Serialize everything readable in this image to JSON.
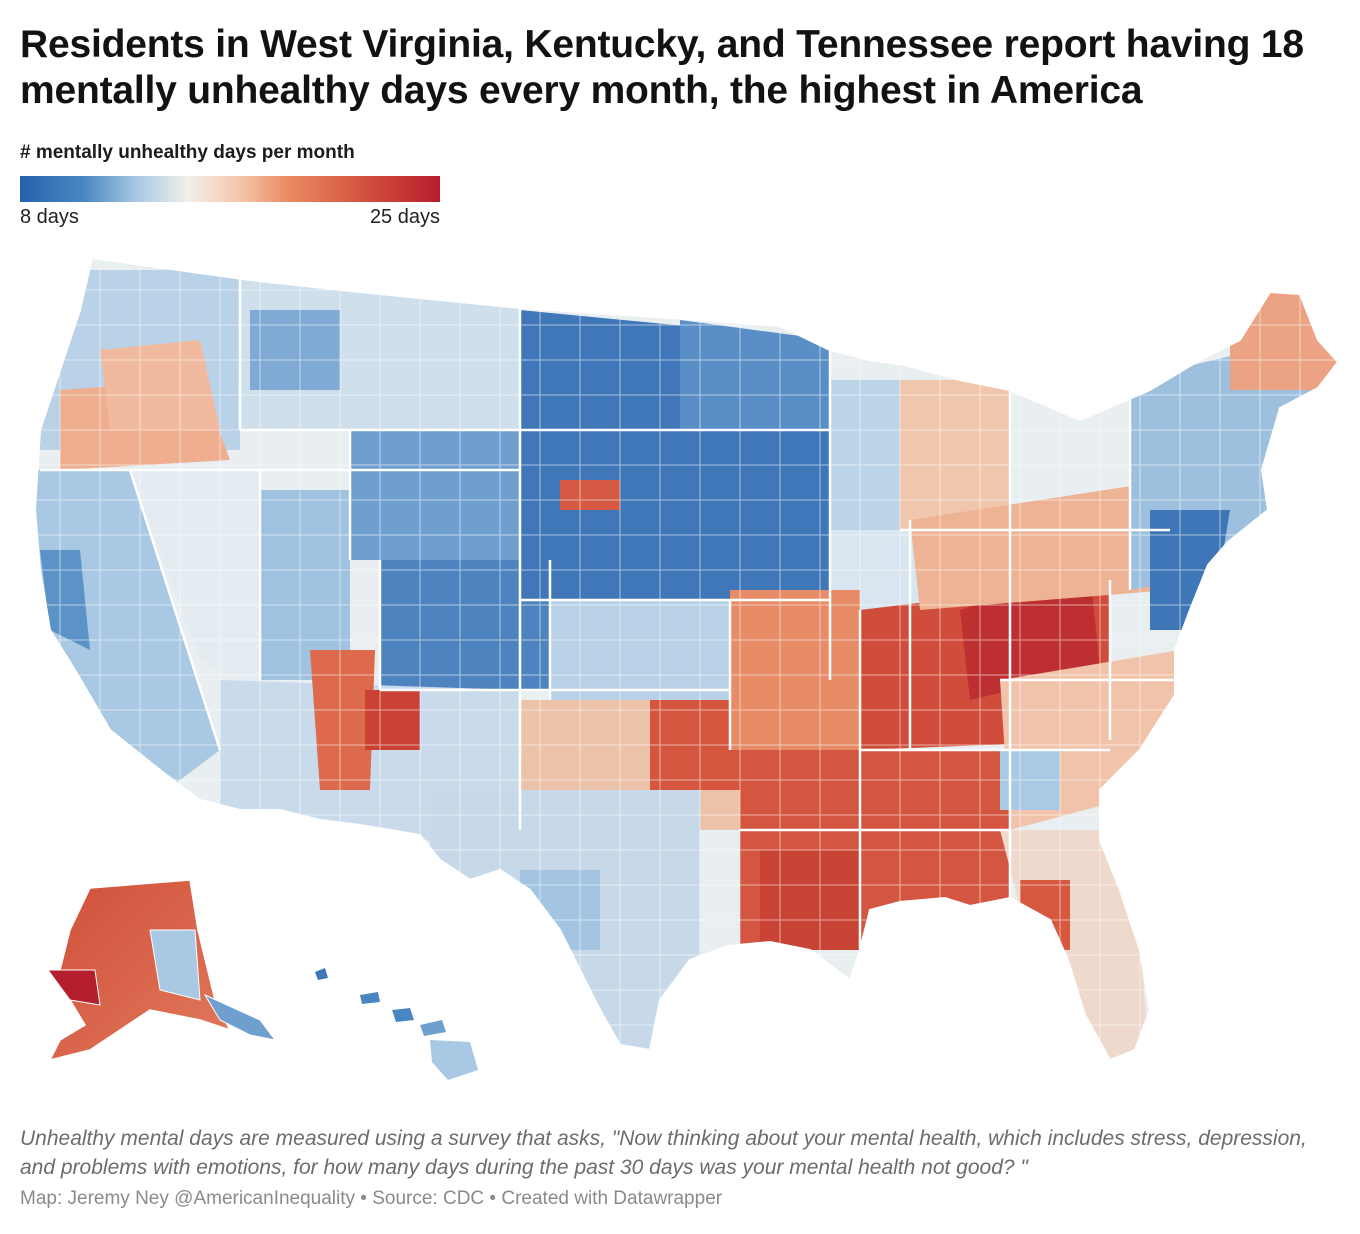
{
  "title": "Residents in West Virginia, Kentucky, and Tennessee report having 18 mentally unhealthy days every month, the highest in America",
  "legend": {
    "title": "# mentally unhealthy days per month",
    "min_label": "8 days",
    "max_label": "25 days",
    "min_value": 8,
    "max_value": 25,
    "colors": [
      "#2462ad",
      "#4a86c2",
      "#a9c9e4",
      "#f2efe9",
      "#f6c7ad",
      "#e98a63",
      "#d4513d",
      "#b61d2d"
    ]
  },
  "map": {
    "region": "United States counties",
    "highlight_regions": [
      "West Virginia",
      "Kentucky",
      "Tennessee"
    ],
    "highlight_value_days": 18
  },
  "note": "Unhealthy mental days are measured using a survey that asks, \"Now thinking about your mental health, which includes stress, depression, and problems with emotions, for how many days during the past 30 days was your mental health not good? \"",
  "credit": "Map: Jeremy Ney @AmericanInequality • Source: CDC • Created with Datawrapper"
}
